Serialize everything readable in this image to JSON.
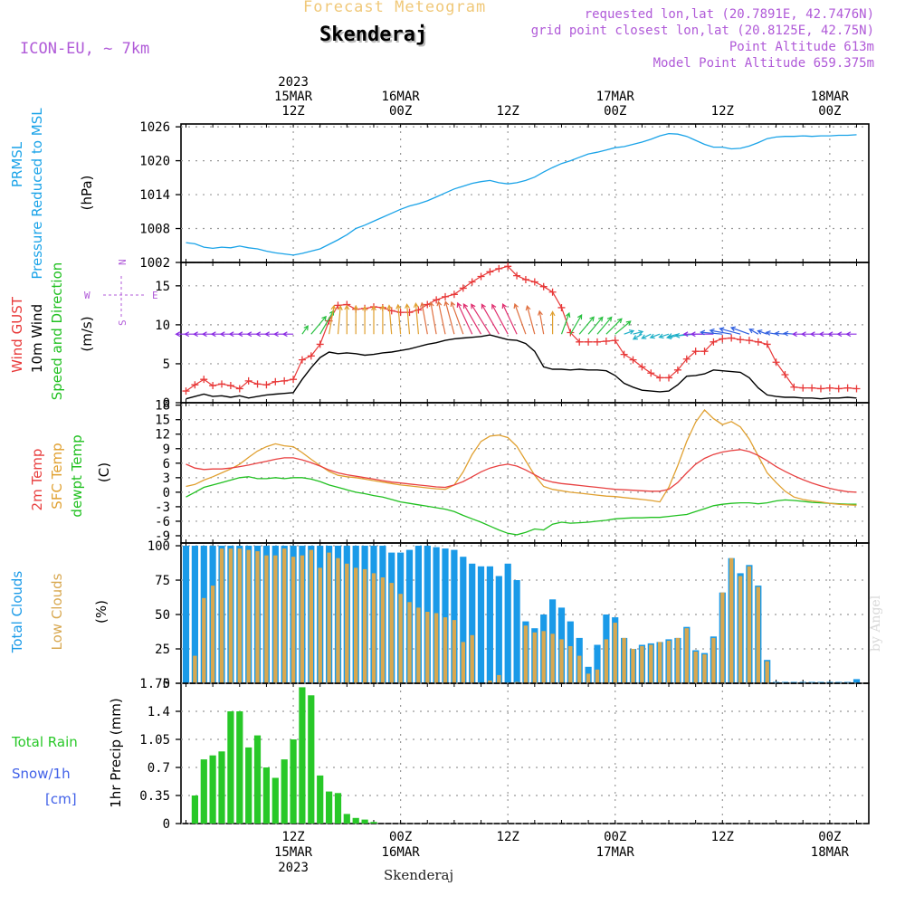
{
  "header": {
    "subtitle": "Forecast Meteogram",
    "title": "Skenderaj",
    "model": "ICON-EU, ~ 7km",
    "requested": "requested lon,lat (20.7891E, 42.7476N)",
    "gridpoint": "grid point closest lon,lat (20.8125E, 42.75N)",
    "altitude": "Point Altitude 613m",
    "model_altitude": "Model Point Altitude 659.375m"
  },
  "footer": {
    "location": "Skenderaj",
    "watermark": "by Angel"
  },
  "time_axis": {
    "top_labels": [
      {
        "hour": 12,
        "lines": [
          "2023",
          "15MAR",
          "12Z"
        ]
      },
      {
        "hour": 24,
        "lines": [
          "16MAR",
          "00Z"
        ]
      },
      {
        "hour": 36,
        "lines": [
          "12Z"
        ]
      },
      {
        "hour": 48,
        "lines": [
          "17MAR",
          "00Z"
        ]
      },
      {
        "hour": 60,
        "lines": [
          "12Z"
        ]
      },
      {
        "hour": 72,
        "lines": [
          "18MAR",
          "00Z"
        ]
      }
    ],
    "bottom_labels": [
      {
        "hour": 12,
        "lines": [
          "12Z",
          "15MAR",
          "2023"
        ]
      },
      {
        "hour": 24,
        "lines": [
          "00Z",
          "16MAR"
        ]
      },
      {
        "hour": 36,
        "lines": [
          "12Z"
        ]
      },
      {
        "hour": 48,
        "lines": [
          "00Z",
          "17MAR"
        ]
      },
      {
        "hour": 60,
        "lines": [
          "12Z"
        ]
      },
      {
        "hour": 72,
        "lines": [
          "00Z",
          "18MAR"
        ]
      }
    ]
  },
  "colors": {
    "pressure": "#1aa3e8",
    "gust": "#e83838",
    "wind": "#000000",
    "temp": "#e84040",
    "sfc": "#e0a030",
    "dewpt": "#20c020",
    "total_clouds": "#1a9ae8",
    "low_clouds": "#d8a850",
    "rain": "#28c828",
    "snow_label": "#4060e8",
    "compass": "#b05ad8"
  },
  "chart_data": [
    {
      "type": "line",
      "name": "pressure",
      "labels": [
        "PRMSL",
        "Pressure Reduced to MSL",
        "(hPa)"
      ],
      "y_ticks": [
        1002,
        1008,
        1014,
        1020,
        1026
      ],
      "ylim": [
        1002,
        1026.5
      ],
      "grid": true,
      "x": [
        0,
        1,
        2,
        3,
        4,
        5,
        6,
        7,
        8,
        9,
        10,
        11,
        12,
        13,
        14,
        15,
        16,
        17,
        18,
        19,
        20,
        21,
        22,
        23,
        24,
        25,
        26,
        27,
        28,
        29,
        30,
        31,
        32,
        33,
        34,
        35,
        36,
        37,
        38,
        39,
        40,
        41,
        42,
        43,
        44,
        45,
        46,
        47,
        48,
        49,
        50,
        51,
        52,
        53,
        54,
        55,
        56,
        57,
        58,
        59,
        60,
        61,
        62,
        63,
        64,
        65,
        66,
        67,
        68,
        69,
        70,
        71,
        72,
        73,
        74,
        75
      ],
      "values": [
        1005.5,
        1005.3,
        1004.7,
        1004.5,
        1004.7,
        1004.6,
        1004.9,
        1004.6,
        1004.4,
        1004.0,
        1003.7,
        1003.5,
        1003.3,
        1003.6,
        1004.0,
        1004.4,
        1005.2,
        1006.0,
        1006.9,
        1008.0,
        1008.6,
        1009.3,
        1010.0,
        1010.7,
        1011.4,
        1012.0,
        1012.4,
        1012.9,
        1013.6,
        1014.3,
        1015.0,
        1015.5,
        1016.0,
        1016.3,
        1016.5,
        1016.1,
        1015.9,
        1016.1,
        1016.5,
        1017.1,
        1018.0,
        1018.8,
        1019.5,
        1020.0,
        1020.6,
        1021.2,
        1021.5,
        1021.9,
        1022.3,
        1022.5,
        1022.9,
        1023.3,
        1023.8,
        1024.4,
        1024.8,
        1024.7,
        1024.3,
        1023.6,
        1022.9,
        1022.4,
        1022.4,
        1022.1,
        1022.2,
        1022.6,
        1023.2,
        1023.9,
        1024.2,
        1024.3,
        1024.3,
        1024.4,
        1024.3,
        1024.4,
        1024.4,
        1024.5,
        1024.5,
        1024.6
      ]
    },
    {
      "type": "line",
      "name": "wind",
      "labels": [
        "Wind GUST",
        "10m Wind",
        "Speed and Direction",
        "(m/s)"
      ],
      "compass": [
        "N",
        "W",
        "E",
        "S"
      ],
      "y_ticks": [
        0,
        5,
        10,
        15
      ],
      "ylim": [
        0,
        18
      ],
      "grid": true,
      "x": [
        0,
        1,
        2,
        3,
        4,
        5,
        6,
        7,
        8,
        9,
        10,
        11,
        12,
        13,
        14,
        15,
        16,
        17,
        18,
        19,
        20,
        21,
        22,
        23,
        24,
        25,
        26,
        27,
        28,
        29,
        30,
        31,
        32,
        33,
        34,
        35,
        36,
        37,
        38,
        39,
        40,
        41,
        42,
        43,
        44,
        45,
        46,
        47,
        48,
        49,
        50,
        51,
        52,
        53,
        54,
        55,
        56,
        57,
        58,
        59,
        60,
        61,
        62,
        63,
        64,
        65,
        66,
        67,
        68,
        69,
        70,
        71,
        72,
        73,
        74,
        75
      ],
      "gust": [
        1.5,
        2.3,
        3.0,
        2.2,
        2.4,
        2.2,
        1.8,
        2.8,
        2.4,
        2.3,
        2.7,
        2.8,
        3.0,
        5.5,
        6.0,
        7.5,
        10.5,
        12.5,
        12.6,
        12.0,
        12.1,
        12.3,
        12.2,
        11.8,
        11.6,
        11.6,
        11.9,
        12.6,
        13.2,
        13.6,
        13.9,
        14.7,
        15.5,
        16.2,
        16.8,
        17.2,
        17.5,
        16.3,
        15.8,
        15.5,
        14.9,
        14.2,
        12.2,
        9.0,
        7.8,
        7.8,
        7.8,
        7.9,
        8.0,
        6.2,
        5.5,
        4.6,
        3.8,
        3.2,
        3.2,
        4.2,
        5.6,
        6.6,
        6.6,
        7.8,
        8.2,
        8.3,
        8.1,
        8.0,
        7.8,
        7.5,
        5.2,
        3.6,
        2.0,
        1.9,
        1.9,
        1.8,
        1.9,
        1.8,
        1.9,
        1.8
      ],
      "speed": [
        0.5,
        0.8,
        1.1,
        0.8,
        0.9,
        0.7,
        0.9,
        0.6,
        0.8,
        1.0,
        1.1,
        1.2,
        1.3,
        3.0,
        4.5,
        5.8,
        6.5,
        6.3,
        6.4,
        6.3,
        6.1,
        6.2,
        6.4,
        6.5,
        6.7,
        6.9,
        7.2,
        7.5,
        7.7,
        8.0,
        8.2,
        8.3,
        8.4,
        8.5,
        8.7,
        8.4,
        8.1,
        8.0,
        7.6,
        6.6,
        4.6,
        4.3,
        4.3,
        4.2,
        4.3,
        4.2,
        4.2,
        4.1,
        3.5,
        2.5,
        2.0,
        1.6,
        1.5,
        1.4,
        1.5,
        2.3,
        3.4,
        3.5,
        3.7,
        4.2,
        4.1,
        4.0,
        3.9,
        3.2,
        1.9,
        1.0,
        0.8,
        0.7,
        0.7,
        0.6,
        0.6,
        0.5,
        0.6,
        0.6,
        0.7,
        0.6
      ],
      "direction_deg": [
        90,
        90,
        90,
        90,
        90,
        90,
        90,
        90,
        90,
        90,
        90,
        90,
        90,
        215,
        220,
        210,
        190,
        185,
        180,
        180,
        180,
        180,
        180,
        175,
        175,
        175,
        175,
        170,
        170,
        168,
        165,
        160,
        155,
        150,
        148,
        150,
        152,
        155,
        160,
        165,
        170,
        180,
        200,
        210,
        220,
        220,
        220,
        225,
        230,
        250,
        255,
        60,
        65,
        70,
        72,
        75,
        80,
        85,
        90,
        90,
        95,
        100,
        105,
        110,
        120,
        110,
        100,
        95,
        95,
        90,
        90,
        90,
        90,
        90,
        90,
        90
      ]
    },
    {
      "type": "line",
      "name": "temperature",
      "labels": [
        "2m Temp",
        "SFC Temp",
        "dewpt Temp",
        "(C)"
      ],
      "y_ticks": [
        -9,
        -6,
        -3,
        0,
        3,
        6,
        9,
        12,
        15,
        18
      ],
      "ylim": [
        -10.5,
        18.5
      ],
      "grid": true,
      "x": [
        0,
        1,
        2,
        3,
        4,
        5,
        6,
        7,
        8,
        9,
        10,
        11,
        12,
        13,
        14,
        15,
        16,
        17,
        18,
        19,
        20,
        21,
        22,
        23,
        24,
        25,
        26,
        27,
        28,
        29,
        30,
        31,
        32,
        33,
        34,
        35,
        36,
        37,
        38,
        39,
        40,
        41,
        42,
        43,
        44,
        45,
        46,
        47,
        48,
        49,
        50,
        51,
        52,
        53,
        54,
        55,
        56,
        57,
        58,
        59,
        60,
        61,
        62,
        63,
        64,
        65,
        66,
        67,
        68,
        69,
        70,
        71,
        72,
        73,
        74,
        75
      ],
      "temp2m": [
        5.8,
        5.0,
        4.7,
        4.8,
        4.8,
        5.0,
        5.3,
        5.6,
        6.0,
        6.4,
        6.8,
        7.1,
        7.1,
        6.7,
        6.1,
        5.4,
        4.6,
        4.0,
        3.6,
        3.3,
        3.0,
        2.7,
        2.4,
        2.1,
        1.9,
        1.7,
        1.5,
        1.3,
        1.1,
        1.0,
        1.5,
        2.2,
        3.2,
        4.2,
        5.0,
        5.5,
        5.8,
        5.4,
        4.6,
        3.6,
        2.6,
        2.1,
        1.8,
        1.6,
        1.4,
        1.2,
        1.0,
        0.8,
        0.6,
        0.5,
        0.4,
        0.3,
        0.2,
        0.2,
        0.6,
        2.0,
        4.0,
        5.8,
        7.0,
        7.8,
        8.3,
        8.6,
        8.8,
        8.4,
        7.6,
        6.5,
        5.3,
        4.3,
        3.4,
        2.6,
        1.9,
        1.3,
        0.8,
        0.4,
        0.1,
        0.0
      ],
      "sfc": [
        1.2,
        1.6,
        2.5,
        3.2,
        4.0,
        4.8,
        5.8,
        7.2,
        8.5,
        9.4,
        10.0,
        9.6,
        9.4,
        8.2,
        6.8,
        5.5,
        4.3,
        3.5,
        3.2,
        3.0,
        2.7,
        2.4,
        2.1,
        1.8,
        1.5,
        1.3,
        1.1,
        0.9,
        0.7,
        0.6,
        1.5,
        4.2,
        7.8,
        10.5,
        11.6,
        11.8,
        11.3,
        9.5,
        6.5,
        3.5,
        1.2,
        0.6,
        0.3,
        0.0,
        -0.2,
        -0.4,
        -0.6,
        -0.8,
        -0.9,
        -1.1,
        -1.3,
        -1.5,
        -1.7,
        -2.0,
        1.0,
        5.5,
        10.5,
        14.5,
        17.0,
        15.2,
        14.0,
        14.6,
        13.5,
        11.0,
        7.5,
        4.0,
        2.0,
        0.2,
        -1.0,
        -1.5,
        -1.8,
        -2.0,
        -2.3,
        -2.5,
        -2.6,
        -2.7
      ],
      "dewpt": [
        -1.0,
        0.0,
        1.0,
        1.5,
        2.0,
        2.5,
        3.0,
        3.2,
        2.8,
        2.8,
        3.0,
        2.8,
        3.0,
        3.0,
        2.7,
        2.2,
        1.5,
        1.0,
        0.5,
        0.0,
        -0.3,
        -0.7,
        -1.0,
        -1.5,
        -2.0,
        -2.3,
        -2.6,
        -2.9,
        -3.2,
        -3.5,
        -4.0,
        -4.8,
        -5.5,
        -6.2,
        -7.0,
        -7.8,
        -8.5,
        -8.8,
        -8.3,
        -7.6,
        -7.8,
        -6.6,
        -6.2,
        -6.4,
        -6.3,
        -6.2,
        -6.0,
        -5.8,
        -5.5,
        -5.4,
        -5.3,
        -5.3,
        -5.2,
        -5.2,
        -5.0,
        -4.8,
        -4.6,
        -4.0,
        -3.4,
        -2.8,
        -2.5,
        -2.3,
        -2.2,
        -2.2,
        -2.4,
        -2.2,
        -1.8,
        -1.6,
        -1.7,
        -1.9,
        -2.1,
        -2.2,
        -2.3,
        -2.4,
        -2.5,
        -2.5
      ]
    },
    {
      "type": "bar",
      "name": "clouds",
      "labels": [
        "Total Clouds",
        "Low Clouds",
        "(%)"
      ],
      "y_ticks": [
        0,
        25,
        50,
        75,
        100
      ],
      "ylim": [
        0,
        102
      ],
      "grid": true,
      "x": [
        0,
        1,
        2,
        3,
        4,
        5,
        6,
        7,
        8,
        9,
        10,
        11,
        12,
        13,
        14,
        15,
        16,
        17,
        18,
        19,
        20,
        21,
        22,
        23,
        24,
        25,
        26,
        27,
        28,
        29,
        30,
        31,
        32,
        33,
        34,
        35,
        36,
        37,
        38,
        39,
        40,
        41,
        42,
        43,
        44,
        45,
        46,
        47,
        48,
        49,
        50,
        51,
        52,
        53,
        54,
        55,
        56,
        57,
        58,
        59,
        60,
        61,
        62,
        63,
        64,
        65,
        66,
        67,
        68,
        69,
        70,
        71,
        72,
        73,
        74,
        75
      ],
      "total": [
        100,
        100,
        100,
        100,
        100,
        100,
        100,
        100,
        100,
        100,
        100,
        100,
        100,
        100,
        100,
        100,
        100,
        100,
        100,
        100,
        100,
        100,
        100,
        95,
        95,
        97,
        100,
        100,
        99,
        98,
        97,
        92,
        87,
        85,
        85,
        78,
        87,
        75,
        45,
        40,
        50,
        61,
        55,
        45,
        33,
        12,
        28,
        50,
        48,
        33,
        25,
        28,
        29,
        30,
        32,
        33,
        41,
        24,
        22,
        34,
        66,
        91,
        80,
        86,
        71,
        17,
        1,
        1,
        1,
        1,
        1,
        1,
        1,
        1,
        1,
        3
      ],
      "low": [
        0,
        20,
        62,
        71,
        98,
        98,
        98,
        97,
        96,
        93,
        93,
        98,
        92,
        93,
        97,
        84,
        95,
        91,
        87,
        84,
        83,
        80,
        77,
        73,
        65,
        59,
        55,
        52,
        51,
        48,
        46,
        30,
        35,
        0,
        2,
        6,
        0,
        1,
        42,
        37,
        38,
        36,
        32,
        27,
        20,
        7,
        10,
        32,
        44,
        33,
        25,
        27,
        28,
        30,
        31,
        33,
        40,
        23,
        21,
        33,
        66,
        91,
        78,
        85,
        70,
        16,
        0,
        0,
        0,
        0,
        0,
        0,
        0,
        0,
        0,
        0
      ]
    },
    {
      "type": "bar",
      "name": "precip",
      "labels": [
        "Total Rain",
        "Snow/1h",
        "[cm]",
        "1hr Precip (mm)"
      ],
      "y_ticks": [
        "0",
        "0.35",
        "0.7",
        "1.05",
        "1.4",
        "1.75"
      ],
      "ylim": [
        0,
        1.75
      ],
      "grid": true,
      "x": [
        0,
        1,
        2,
        3,
        4,
        5,
        6,
        7,
        8,
        9,
        10,
        11,
        12,
        13,
        14,
        15,
        16,
        17,
        18,
        19,
        20,
        21,
        22,
        23,
        24,
        25,
        26,
        27,
        28,
        29,
        30,
        31,
        32,
        33,
        34,
        35,
        36,
        37,
        38,
        39,
        40,
        41,
        42,
        43,
        44,
        45,
        46,
        47,
        48,
        49,
        50,
        51,
        52,
        53,
        54,
        55,
        56,
        57,
        58,
        59,
        60,
        61,
        62,
        63,
        64,
        65,
        66,
        67,
        68,
        69,
        70,
        71,
        72,
        73,
        74,
        75
      ],
      "values": [
        0,
        0.35,
        0.8,
        0.85,
        0.9,
        1.4,
        1.4,
        0.95,
        1.1,
        0.7,
        0.57,
        0.8,
        1.05,
        1.7,
        1.6,
        0.6,
        0.4,
        0.38,
        0.12,
        0.07,
        0.05,
        0.02,
        0,
        0,
        0,
        0,
        0,
        0,
        0,
        0,
        0,
        0,
        0,
        0,
        0,
        0,
        0,
        0,
        0,
        0,
        0,
        0,
        0,
        0,
        0,
        0,
        0,
        0,
        0,
        0,
        0,
        0,
        0,
        0,
        0,
        0,
        0,
        0,
        0,
        0,
        0,
        0,
        0,
        0,
        0,
        0,
        0,
        0,
        0,
        0,
        0,
        0,
        0,
        0,
        0,
        0
      ]
    }
  ]
}
